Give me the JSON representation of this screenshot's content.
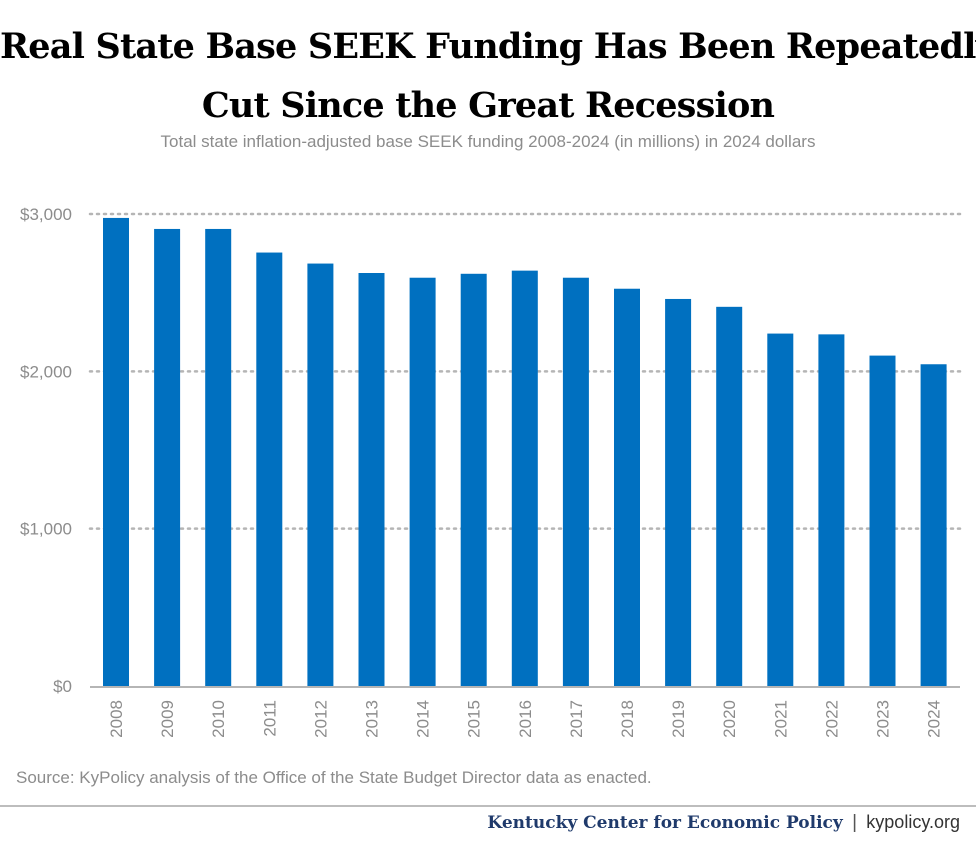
{
  "chart_data": {
    "type": "bar",
    "title": [
      "Real State Base SEEK Funding Has Been Repeatedly",
      "Cut Since the Great Recession"
    ],
    "subtitle": "Total state inflation-adjusted base SEEK funding 2008-2024 (in millions) in 2024 dollars",
    "categories": [
      "2008",
      "2009",
      "2010",
      "2011",
      "2012",
      "2013",
      "2014",
      "2015",
      "2016",
      "2017",
      "2018",
      "2019",
      "2020",
      "2021",
      "2022",
      "2023",
      "2024"
    ],
    "values": [
      2975,
      2905,
      2905,
      2755,
      2685,
      2625,
      2595,
      2620,
      2640,
      2595,
      2525,
      2460,
      2410,
      2240,
      2235,
      2100,
      2045
    ],
    "ylim": [
      0,
      3000
    ],
    "yticks": [
      0,
      1000,
      2000,
      3000
    ],
    "ytick_labels": [
      "$0",
      "$1,000",
      "$2,000",
      "$3,000"
    ],
    "xlabel": "",
    "ylabel": "",
    "grid": "dotted horizontal",
    "bar_color": "#0070c0",
    "source": "Source: KyPolicy analysis of the Office of the State Budget Director data as enacted."
  },
  "footer": {
    "org": "Kentucky Center for Economic Policy",
    "separator": "|",
    "site": "kypolicy.org"
  }
}
